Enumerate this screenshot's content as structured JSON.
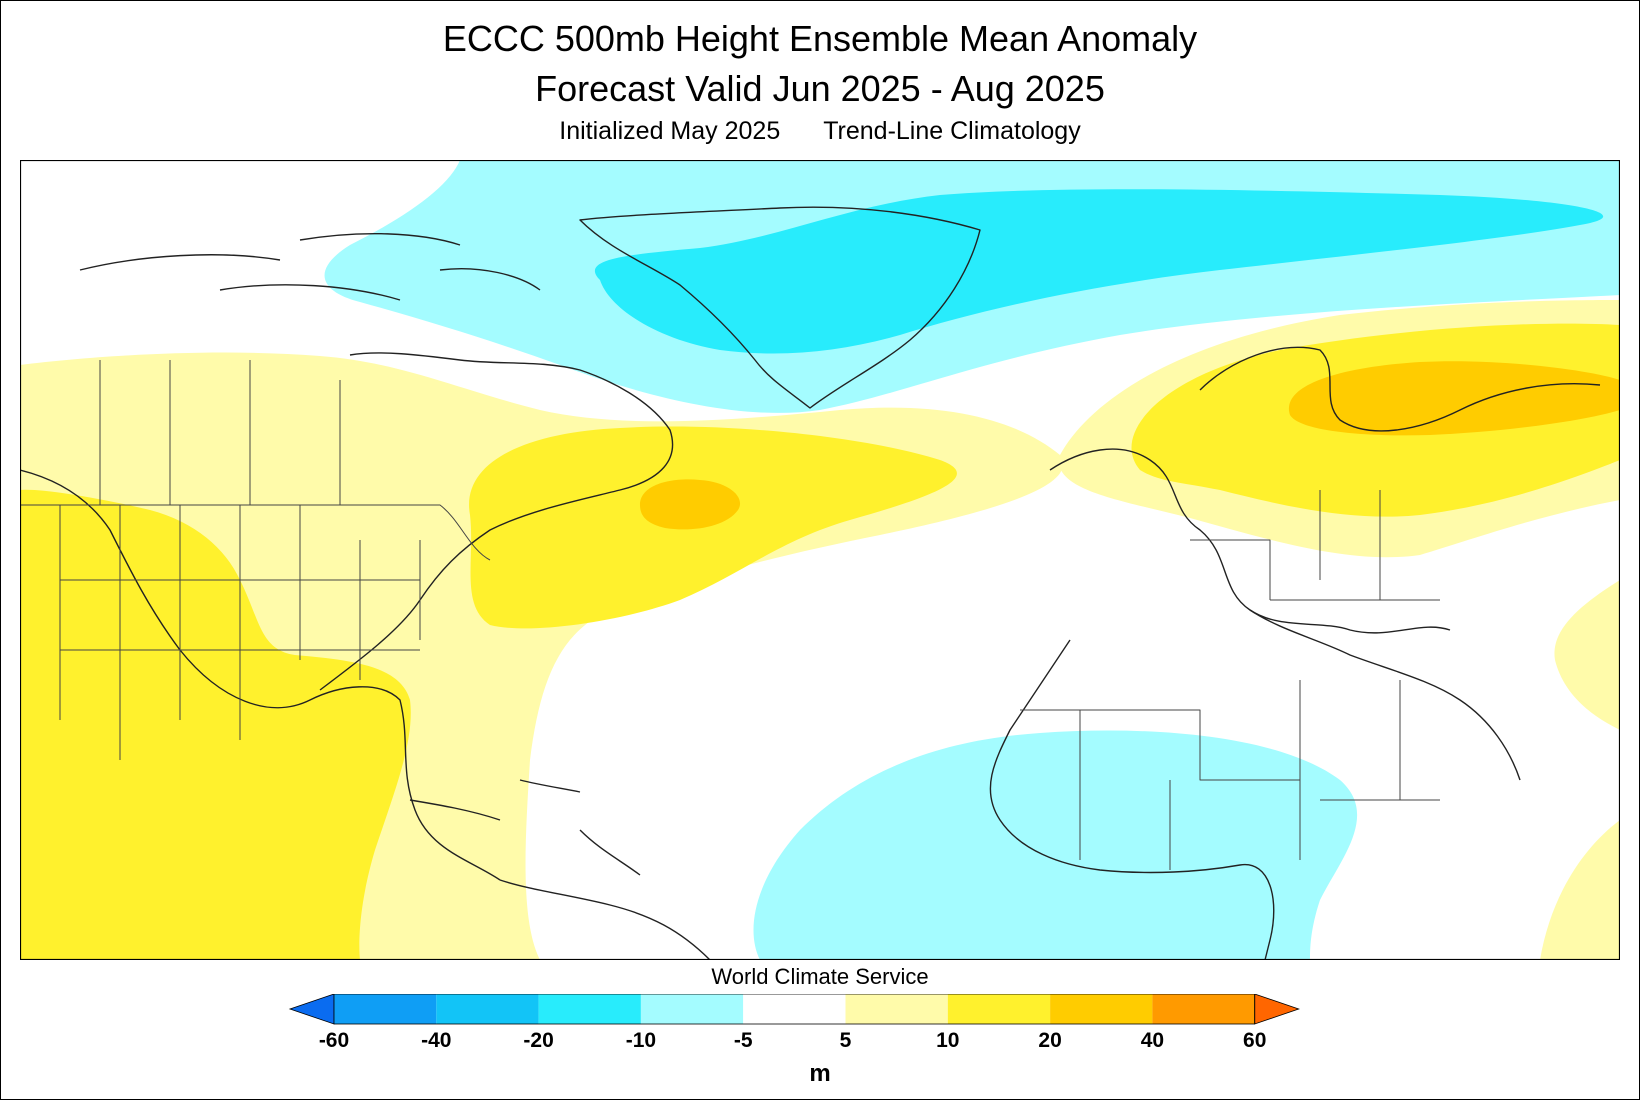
{
  "title": {
    "line1": "ECCC 500mb Height Ensemble Mean Anomaly",
    "line2": "Forecast Valid Jun 2025 - Aug 2025",
    "initialized": "Initialized May 2025",
    "climatology": "Trend-Line Climatology"
  },
  "credit": "World Climate Service",
  "legend": {
    "units": "m",
    "ticks": [
      "-60",
      "-40",
      "-20",
      "-10",
      "-5",
      "5",
      "10",
      "20",
      "40",
      "60"
    ],
    "bins": [
      {
        "range": "< -60",
        "color": "#0a6cf0"
      },
      {
        "range": "-60 to -40",
        "color": "#0f9ef5"
      },
      {
        "range": "-40 to -20",
        "color": "#12c4f7"
      },
      {
        "range": "-20 to -10",
        "color": "#28ecfc"
      },
      {
        "range": "-10 to -5",
        "color": "#a4fcff"
      },
      {
        "range": "-5 to 5",
        "color": "#ffffff"
      },
      {
        "range": "5 to 10",
        "color": "#fffbaa"
      },
      {
        "range": "10 to 20",
        "color": "#fff12d"
      },
      {
        "range": "20 to 40",
        "color": "#ffcc00"
      },
      {
        "range": "40 to 60",
        "color": "#ff9a00"
      },
      {
        "range": "> 60",
        "color": "#ff6600"
      }
    ]
  },
  "map": {
    "region": "North Atlantic and surrounding continents",
    "anomaly_regions": [
      {
        "name": "Arctic / Greenland negative anomaly",
        "category": "-20 to -10",
        "color": "#28ecfc"
      },
      {
        "name": "Arctic outer negative anomaly",
        "category": "-10 to -5",
        "color": "#a4fcff"
      },
      {
        "name": "Tropical Atlantic / West Africa negative anomaly",
        "category": "-10 to -5",
        "color": "#a4fcff"
      },
      {
        "name": "North America positive anomaly",
        "category": "5 to 10",
        "color": "#fffbaa"
      },
      {
        "name": "Western North America / Mexico positive anomaly",
        "category": "10 to 20",
        "color": "#fff12d"
      },
      {
        "name": "Northwest Atlantic positive anomaly",
        "category": "10 to 20",
        "color": "#fff12d"
      },
      {
        "name": "Newfoundland maximum",
        "category": "20 to 40",
        "color": "#ffcc00"
      },
      {
        "name": "Northern Europe positive anomaly",
        "category": "10 to 20",
        "color": "#fff12d"
      },
      {
        "name": "Scandinavia / Baltic maximum",
        "category": "20 to 40",
        "color": "#ffcc00"
      }
    ]
  }
}
